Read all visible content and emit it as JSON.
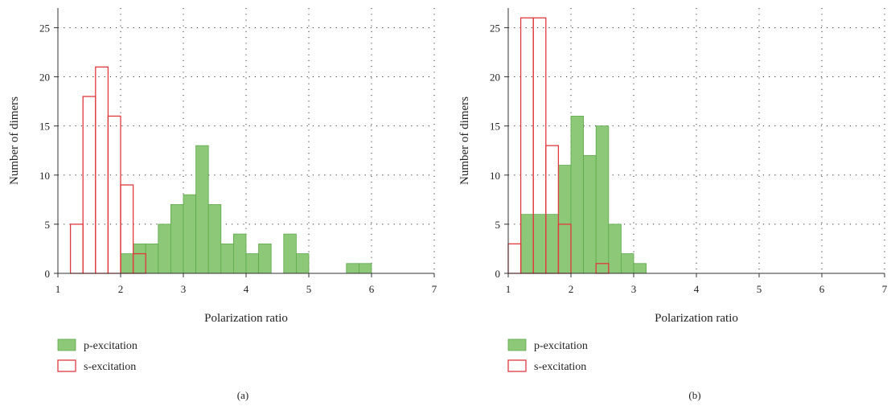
{
  "colors": {
    "p_fill": "#8cc878",
    "p_stroke": "#5ea84a",
    "s_stroke": "#e0393e",
    "grid": "#333333",
    "axis": "#333333"
  },
  "chart_data": [
    {
      "type": "bar",
      "caption": "(a)",
      "xlabel": "Polarization ratio",
      "ylabel": "Number of dimers",
      "xlim": [
        1,
        7
      ],
      "ylim": [
        0,
        27
      ],
      "xticks": [
        1,
        2,
        3,
        4,
        5,
        6,
        7
      ],
      "yticks": [
        0,
        5,
        10,
        15,
        20,
        25
      ],
      "grid": true,
      "legend_position": "bottom-left",
      "bin_width": 0.2,
      "series": [
        {
          "name": "p-excitation",
          "style": "filled",
          "bins": [
            {
              "x": 2.1,
              "y": 2
            },
            {
              "x": 2.3,
              "y": 3
            },
            {
              "x": 2.5,
              "y": 3
            },
            {
              "x": 2.7,
              "y": 5
            },
            {
              "x": 2.9,
              "y": 7
            },
            {
              "x": 3.1,
              "y": 8
            },
            {
              "x": 3.3,
              "y": 13
            },
            {
              "x": 3.5,
              "y": 7
            },
            {
              "x": 3.7,
              "y": 3
            },
            {
              "x": 3.9,
              "y": 4
            },
            {
              "x": 4.1,
              "y": 2
            },
            {
              "x": 4.3,
              "y": 3
            },
            {
              "x": 4.7,
              "y": 4
            },
            {
              "x": 4.9,
              "y": 2
            },
            {
              "x": 5.7,
              "y": 1
            },
            {
              "x": 5.9,
              "y": 1
            }
          ]
        },
        {
          "name": "s-excitation",
          "style": "outline",
          "bins": [
            {
              "x": 1.3,
              "y": 5
            },
            {
              "x": 1.5,
              "y": 18
            },
            {
              "x": 1.7,
              "y": 21
            },
            {
              "x": 1.9,
              "y": 16
            },
            {
              "x": 2.1,
              "y": 9
            },
            {
              "x": 2.3,
              "y": 2
            }
          ]
        }
      ]
    },
    {
      "type": "bar",
      "caption": "(b)",
      "xlabel": "Polarization ratio",
      "ylabel": "Number of dimers",
      "xlim": [
        1,
        7
      ],
      "ylim": [
        0,
        27
      ],
      "xticks": [
        1,
        2,
        3,
        4,
        5,
        6,
        7
      ],
      "yticks": [
        0,
        5,
        10,
        15,
        20,
        25
      ],
      "grid": true,
      "legend_position": "bottom-left",
      "bin_width": 0.2,
      "series": [
        {
          "name": "p-excitation",
          "style": "filled",
          "bins": [
            {
              "x": 1.3,
              "y": 6
            },
            {
              "x": 1.5,
              "y": 6
            },
            {
              "x": 1.7,
              "y": 6
            },
            {
              "x": 1.9,
              "y": 11
            },
            {
              "x": 2.1,
              "y": 16
            },
            {
              "x": 2.3,
              "y": 12
            },
            {
              "x": 2.5,
              "y": 15
            },
            {
              "x": 2.7,
              "y": 5
            },
            {
              "x": 2.9,
              "y": 2
            },
            {
              "x": 3.1,
              "y": 1
            }
          ]
        },
        {
          "name": "s-excitation",
          "style": "outline",
          "bins": [
            {
              "x": 1.1,
              "y": 3
            },
            {
              "x": 1.3,
              "y": 26
            },
            {
              "x": 1.5,
              "y": 26
            },
            {
              "x": 1.7,
              "y": 13
            },
            {
              "x": 1.9,
              "y": 5
            },
            {
              "x": 2.5,
              "y": 1
            }
          ]
        }
      ]
    }
  ]
}
